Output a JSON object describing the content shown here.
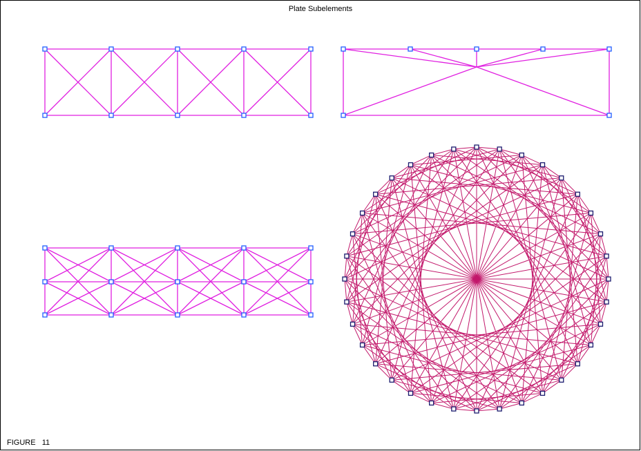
{
  "header": {
    "title": "Plate Subelements"
  },
  "footer": {
    "figure_label": "FIGURE   11"
  }
}
